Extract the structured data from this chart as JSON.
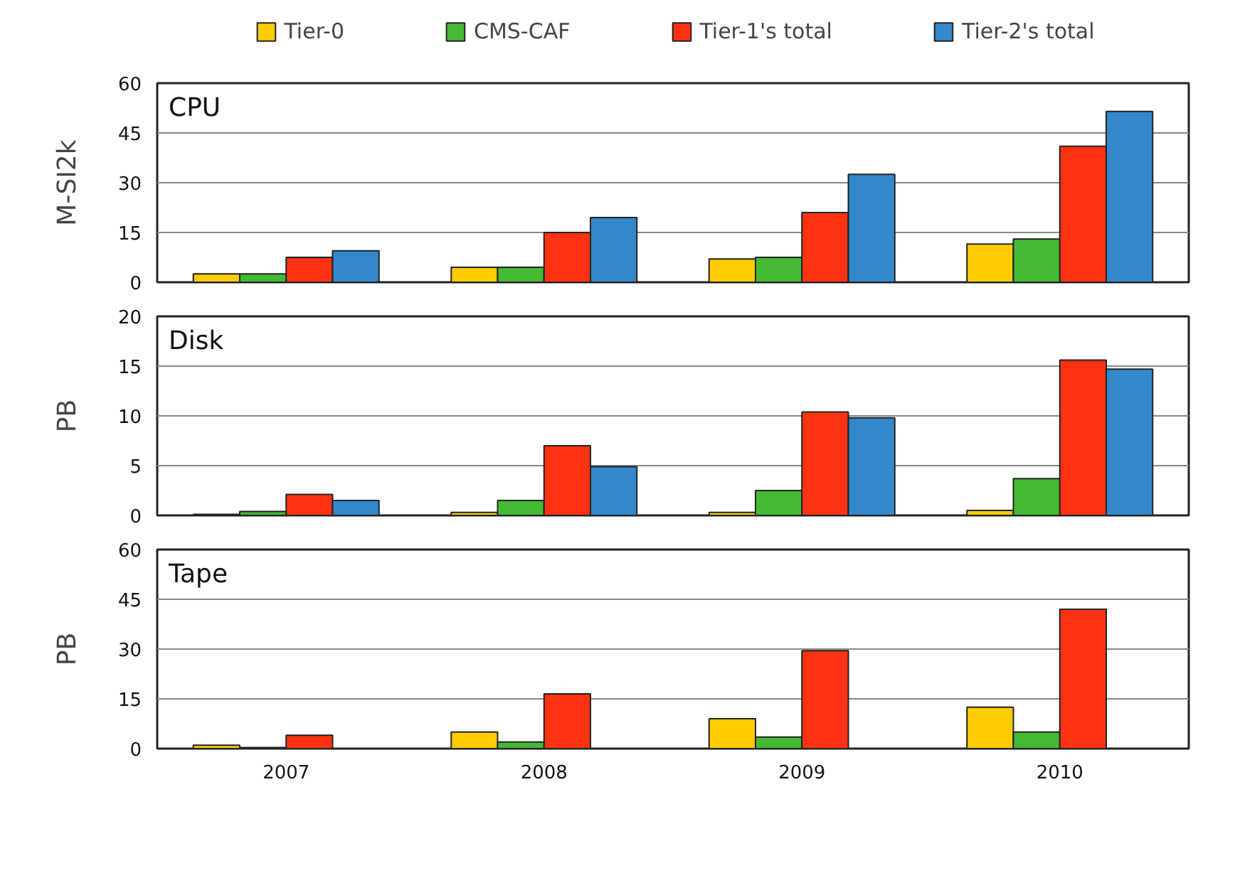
{
  "chart_data": [
    {
      "type": "bar",
      "title": "CPU",
      "ylabel": "M-SI2k",
      "categories": [
        "2007",
        "2008",
        "2009",
        "2010"
      ],
      "ylim": [
        0,
        60
      ],
      "yticks": [
        0,
        15,
        30,
        45,
        60
      ],
      "grid": "y",
      "legend": "top",
      "tick_labels": "y",
      "series": [
        {
          "name": "Tier-0",
          "color": "#ffcc00",
          "values": [
            2.5,
            4.5,
            7,
            11.5
          ]
        },
        {
          "name": "CMS-CAF",
          "color": "#44bb33",
          "values": [
            2.5,
            4.5,
            7.5,
            13
          ]
        },
        {
          "name": "Tier-1's total",
          "color": "#ff3311",
          "values": [
            7.5,
            15,
            21,
            41
          ]
        },
        {
          "name": "Tier-2's total",
          "color": "#3388cc",
          "values": [
            9.5,
            19.5,
            32.5,
            51.5
          ]
        }
      ]
    },
    {
      "type": "bar",
      "title": "Disk",
      "ylabel": "PB",
      "categories": [
        "2007",
        "2008",
        "2009",
        "2010"
      ],
      "ylim": [
        0,
        20
      ],
      "yticks": [
        0,
        5,
        10,
        15,
        20
      ],
      "grid": "y",
      "tick_labels": "y",
      "series": [
        {
          "color": "#ffcc00",
          "values": [
            0.1,
            0.3,
            0.3,
            0.5
          ]
        },
        {
          "color": "#44bb33",
          "values": [
            0.4,
            1.5,
            2.5,
            3.7
          ]
        },
        {
          "color": "#ff3311",
          "values": [
            2.1,
            7,
            10.4,
            15.6
          ]
        },
        {
          "color": "#3388cc",
          "values": [
            1.5,
            4.9,
            9.8,
            14.7
          ]
        }
      ]
    },
    {
      "type": "bar",
      "title": "Tape",
      "ylabel": "PB",
      "categories": [
        "2007",
        "2008",
        "2009",
        "2010"
      ],
      "ylim": [
        0,
        60
      ],
      "yticks": [
        0,
        15,
        30,
        45,
        60
      ],
      "grid": "y",
      "series": [
        {
          "color": "#ffcc00",
          "values": [
            1,
            5,
            9,
            12.5
          ]
        },
        {
          "color": "#44bb33",
          "values": [
            0.3,
            2,
            3.5,
            5
          ]
        },
        {
          "color": "#ff3311",
          "values": [
            4,
            16.5,
            29.5,
            42
          ]
        },
        {
          "color": "#3388cc",
          "values": [
            null,
            null,
            null,
            null
          ]
        }
      ]
    }
  ]
}
